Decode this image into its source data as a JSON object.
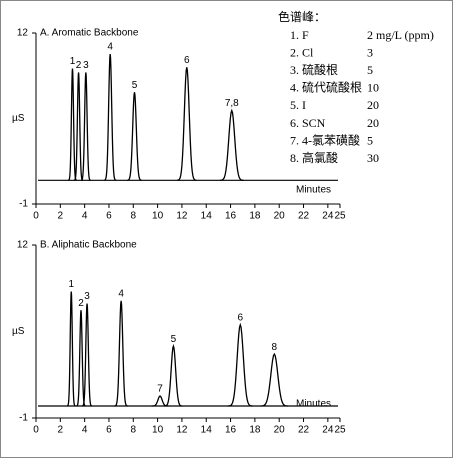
{
  "chart_data": [
    {
      "type": "chromatogram",
      "title": "A. Aromatic Backbone",
      "xlabel": "Minutes",
      "ylabel": "µS",
      "xlim": [
        0,
        25
      ],
      "ylim": [
        -1,
        12
      ],
      "xticks": [
        0,
        2,
        4,
        6,
        8,
        10,
        12,
        14,
        16,
        18,
        20,
        22,
        24,
        25
      ],
      "yticks": [
        -1,
        12
      ],
      "color": "#000000",
      "baseline": 0.8,
      "x": [
        3.0,
        3.5,
        4.1,
        6.1,
        8.1,
        12.4,
        16.1
      ],
      "values": [
        9.3,
        9.0,
        9.0,
        10.4,
        7.5,
        9.4,
        6.1
      ],
      "peak_labels": [
        "1",
        "2",
        "3",
        "4",
        "5",
        "6",
        "7,8"
      ],
      "peak_table": {
        "title": "色谱峰：",
        "rows": [
          [
            "1. F",
            "2 mg/L (ppm)"
          ],
          [
            "2. Cl",
            "3"
          ],
          [
            "3. 硫酸根",
            "5"
          ],
          [
            "4. 硫代硫酸根",
            "10"
          ],
          [
            "5. I",
            "20"
          ],
          [
            "6. SCN",
            "20"
          ],
          [
            "7. 4-氯苯磺酸",
            "5"
          ],
          [
            "8. 高氯酸",
            "30"
          ]
        ]
      }
    },
    {
      "type": "chromatogram",
      "title": "B. Aliphatic Backbone",
      "xlabel": "Minutes",
      "ylabel": "µS",
      "xlim": [
        0,
        25
      ],
      "ylim": [
        -1,
        12
      ],
      "xticks": [
        0,
        2,
        4,
        6,
        8,
        10,
        12,
        14,
        16,
        18,
        20,
        22,
        24,
        25
      ],
      "yticks": [
        -1,
        12
      ],
      "color": "#000000",
      "baseline": -0.1,
      "x": [
        2.9,
        3.7,
        4.2,
        7.0,
        10.2,
        11.3,
        16.8,
        19.6
      ],
      "values": [
        8.5,
        7.1,
        7.6,
        7.8,
        0.65,
        4.4,
        6.0,
        3.8
      ],
      "peak_labels": [
        "1",
        "2",
        "3",
        "4",
        "7",
        "5",
        "6",
        "8"
      ]
    }
  ]
}
